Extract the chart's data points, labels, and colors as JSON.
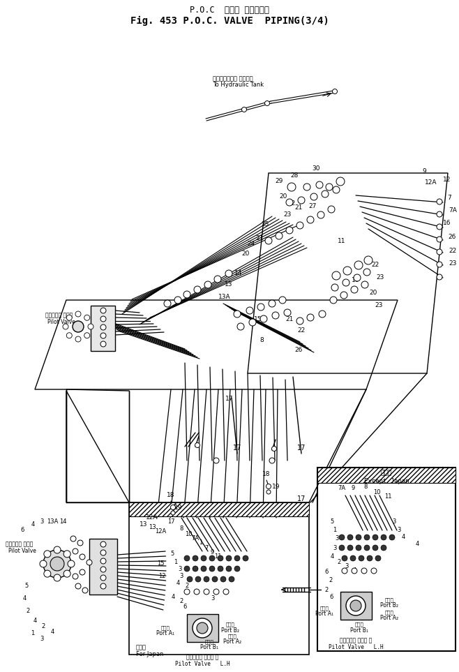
{
  "title_line1": "P.O.C  バルブ パイピング",
  "title_line2": "Fig. 453 P.O.C. VALVE  PIPING(3/4)",
  "bg_color": "#ffffff",
  "fig_width": 6.58,
  "fig_height": 9.63,
  "hydraulic_jp": "ハイドロリック タンクへ",
  "hydraulic_en": "To Hydraulic Tank",
  "except_japan_jp": "海外向",
  "except_japan_en": "Except Japan",
  "for_japan_jp": "日本向",
  "for_japan_en": "For Japan",
  "pilot_valve_jp": "パイロット ハルフ",
  "pilot_valve_en": "Pilot Valve",
  "pilot_valve_lh_jp": "パイロット バルブ 左",
  "pilot_valve_lh_en": "Pilot Valve   L.H",
  "port_jp": "ポート",
  "port_a1": "Port A₁",
  "port_a2": "Port A₂",
  "port_b1": "Port B₁",
  "port_b2": "Port B₂"
}
